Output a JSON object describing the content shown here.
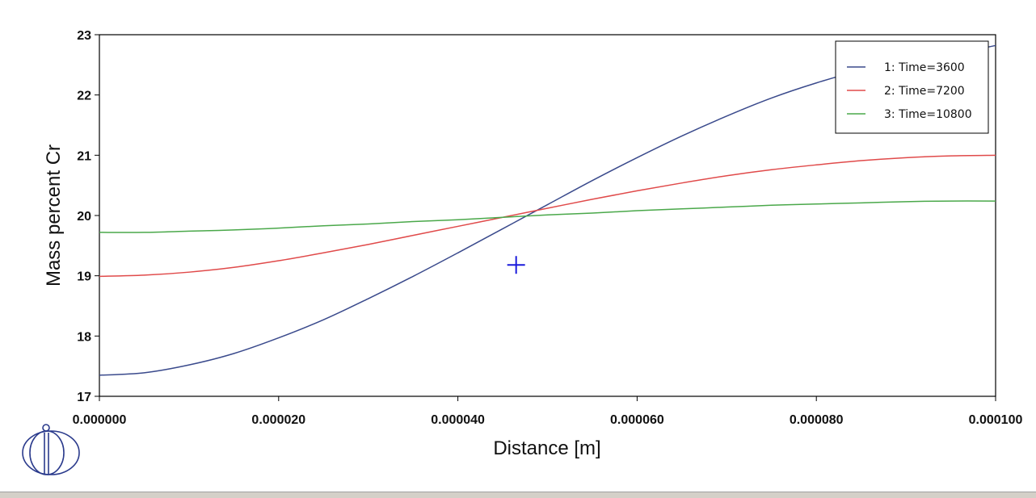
{
  "chart_data": {
    "type": "line",
    "xlabel": "Distance [m]",
    "ylabel": "Mass percent Cr",
    "xlim": [
      0,
      0.0001
    ],
    "ylim": [
      17,
      23
    ],
    "x_ticks": [
      0,
      2e-05,
      4e-05,
      6e-05,
      8e-05,
      0.0001
    ],
    "x_tick_labels": [
      "0.000000",
      "0.000020",
      "0.000040",
      "0.000060",
      "0.000080",
      "0.000100"
    ],
    "y_ticks": [
      17,
      18,
      19,
      20,
      21,
      22,
      23
    ],
    "y_tick_labels": [
      "17",
      "18",
      "19",
      "20",
      "21",
      "22",
      "23"
    ],
    "grid": false,
    "legend_position": "top-right",
    "series": [
      {
        "name": "1:  Time=3600",
        "color": "#3a4a8c",
        "x": [
          0,
          5e-06,
          1e-05,
          1.5e-05,
          2e-05,
          2.5e-05,
          3e-05,
          3.5e-05,
          4e-05,
          4.5e-05,
          5e-05,
          5.5e-05,
          6e-05,
          6.5e-05,
          7e-05,
          7.5e-05,
          8e-05,
          8.5e-05,
          9e-05,
          9.5e-05,
          0.0001
        ],
        "y": [
          17.35,
          17.39,
          17.52,
          17.71,
          17.97,
          18.27,
          18.62,
          18.99,
          19.38,
          19.78,
          20.18,
          20.58,
          20.96,
          21.32,
          21.65,
          21.95,
          22.2,
          22.41,
          22.57,
          22.68,
          22.82
        ]
      },
      {
        "name": "2:  Time=7200",
        "color": "#e04a4a",
        "x": [
          0,
          5e-06,
          1e-05,
          1.5e-05,
          2e-05,
          2.5e-05,
          3e-05,
          3.5e-05,
          4e-05,
          4.5e-05,
          5e-05,
          5.5e-05,
          6e-05,
          6.5e-05,
          7e-05,
          7.5e-05,
          8e-05,
          8.5e-05,
          9e-05,
          9.5e-05,
          0.0001
        ],
        "y": [
          18.99,
          19.01,
          19.06,
          19.14,
          19.25,
          19.38,
          19.52,
          19.67,
          19.82,
          19.97,
          20.12,
          20.27,
          20.41,
          20.54,
          20.66,
          20.76,
          20.84,
          20.91,
          20.96,
          20.99,
          21.0
        ]
      },
      {
        "name": "3:  Time=10800",
        "color": "#4aa84a",
        "x": [
          0,
          5e-06,
          1e-05,
          1.5e-05,
          2e-05,
          2.5e-05,
          3e-05,
          3.5e-05,
          4e-05,
          4.5e-05,
          5e-05,
          5.5e-05,
          6e-05,
          6.5e-05,
          7e-05,
          7.5e-05,
          8e-05,
          8.5e-05,
          9e-05,
          9.5e-05,
          0.0001
        ],
        "y": [
          19.72,
          19.72,
          19.74,
          19.76,
          19.79,
          19.83,
          19.86,
          19.9,
          19.93,
          19.97,
          20.01,
          20.04,
          20.08,
          20.11,
          20.14,
          20.17,
          20.19,
          20.21,
          20.23,
          20.24,
          20.24
        ]
      }
    ],
    "cursor_marker": {
      "x": 4.65e-05,
      "y": 19.18,
      "color": "#1a1adb"
    }
  },
  "logo": {
    "name": "thermo-calc-logo",
    "color": "#2a3a8c"
  }
}
